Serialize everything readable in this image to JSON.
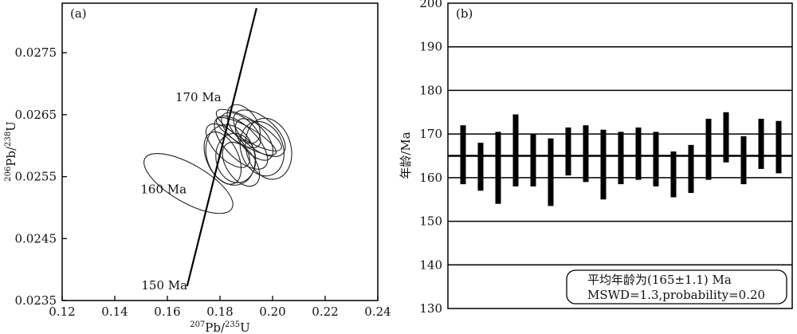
{
  "chart_data": [
    {
      "type": "scatter",
      "panel_label": "(a)",
      "xlabel": {
        "sup1": "207",
        "main1": "Pb/",
        "sup2": "235",
        "main2": "U"
      },
      "ylabel": {
        "sup1": "206",
        "main1": "Pb/",
        "sup2": "238",
        "main2": "U"
      },
      "xlim": [
        0.12,
        0.24
      ],
      "ylim": [
        0.0235,
        0.0283
      ],
      "x_ticks": [
        0.12,
        0.14,
        0.16,
        0.18,
        0.2,
        0.22,
        0.24
      ],
      "x_tick_labels": [
        "0.12",
        "0.14",
        "0.16",
        "0.18",
        "0.20",
        "0.22",
        "0.24"
      ],
      "y_ticks": [
        0.0235,
        0.0245,
        0.0255,
        0.0265,
        0.0275
      ],
      "y_tick_labels": [
        "0.0235",
        "0.0245",
        "0.0255",
        "0.0265",
        "0.0275"
      ],
      "concordia": {
        "start": [
          0.1675,
          0.02373
        ],
        "end": [
          0.1939,
          0.02822
        ]
      },
      "age_labels": [
        {
          "text": "170 Ma",
          "x": 0.1805,
          "y": 0.02672
        },
        {
          "text": "160 Ma",
          "x": 0.1673,
          "y": 0.02523
        },
        {
          "text": "150 Ma",
          "x": 0.1676,
          "y": 0.02368
        }
      ],
      "ellipses": [
        {
          "cx": 0.168,
          "cy": 0.02539,
          "rx": 0.0072,
          "ry": 0.00081,
          "angle": 60
        },
        {
          "cx": 0.181,
          "cy": 0.0258,
          "rx": 0.006,
          "ry": 0.00045,
          "angle": 25
        },
        {
          "cx": 0.184,
          "cy": 0.02585,
          "rx": 0.009,
          "ry": 0.0005,
          "angle": 20
        },
        {
          "cx": 0.186,
          "cy": 0.0258,
          "rx": 0.0075,
          "ry": 0.0004,
          "angle": 10
        },
        {
          "cx": 0.188,
          "cy": 0.02625,
          "rx": 0.0045,
          "ry": 0.00038,
          "angle": 50
        },
        {
          "cx": 0.188,
          "cy": 0.02605,
          "rx": 0.006,
          "ry": 0.00055,
          "angle": 45
        },
        {
          "cx": 0.189,
          "cy": 0.02635,
          "rx": 0.005,
          "ry": 0.00035,
          "angle": 35
        },
        {
          "cx": 0.19,
          "cy": 0.02615,
          "rx": 0.0035,
          "ry": 0.00055,
          "angle": 60
        },
        {
          "cx": 0.191,
          "cy": 0.02625,
          "rx": 0.004,
          "ry": 0.0006,
          "angle": 60
        },
        {
          "cx": 0.193,
          "cy": 0.0261,
          "rx": 0.005,
          "ry": 0.0004,
          "angle": 40
        },
        {
          "cx": 0.195,
          "cy": 0.0262,
          "rx": 0.006,
          "ry": 0.0005,
          "angle": 50
        },
        {
          "cx": 0.196,
          "cy": 0.02595,
          "rx": 0.008,
          "ry": 0.00045,
          "angle": 20
        },
        {
          "cx": 0.1985,
          "cy": 0.02595,
          "rx": 0.0085,
          "ry": 0.0005,
          "angle": 15
        },
        {
          "cx": 0.188,
          "cy": 0.0257,
          "rx": 0.0055,
          "ry": 0.0004,
          "angle": 35
        },
        {
          "cx": 0.183,
          "cy": 0.026,
          "rx": 0.005,
          "ry": 0.00045,
          "angle": 45
        }
      ]
    },
    {
      "type": "bar",
      "panel_label": "(b)",
      "ylabel": "年龄/Ma",
      "ylim": [
        130,
        200
      ],
      "y_ticks": [
        130,
        140,
        150,
        160,
        170,
        180,
        190,
        200
      ],
      "y_tick_labels": [
        "130",
        "140",
        "150",
        "160",
        "170",
        "180",
        "190",
        "200"
      ],
      "grid": true,
      "mean_age": 165,
      "bars": [
        {
          "low": 158.5,
          "high": 172.0
        },
        {
          "low": 157.0,
          "high": 168.0
        },
        {
          "low": 154.0,
          "high": 170.5
        },
        {
          "low": 158.0,
          "high": 174.5
        },
        {
          "low": 158.0,
          "high": 170.0
        },
        {
          "low": 153.5,
          "high": 169.0
        },
        {
          "low": 160.5,
          "high": 171.5
        },
        {
          "low": 159.0,
          "high": 172.0
        },
        {
          "low": 155.0,
          "high": 171.0
        },
        {
          "low": 158.5,
          "high": 170.5
        },
        {
          "low": 159.5,
          "high": 171.5
        },
        {
          "low": 158.0,
          "high": 170.5
        },
        {
          "low": 155.5,
          "high": 166.0
        },
        {
          "low": 156.5,
          "high": 167.5
        },
        {
          "low": 159.5,
          "high": 173.5
        },
        {
          "low": 163.5,
          "high": 175.0
        },
        {
          "low": 158.5,
          "high": 169.5
        },
        {
          "low": 162.0,
          "high": 173.5
        },
        {
          "low": 161.0,
          "high": 173.0
        }
      ],
      "stats_line1": "平均年龄为(165±1.1)  Ma",
      "stats_line2": "MSWD=1.3,probability=0.20"
    }
  ]
}
